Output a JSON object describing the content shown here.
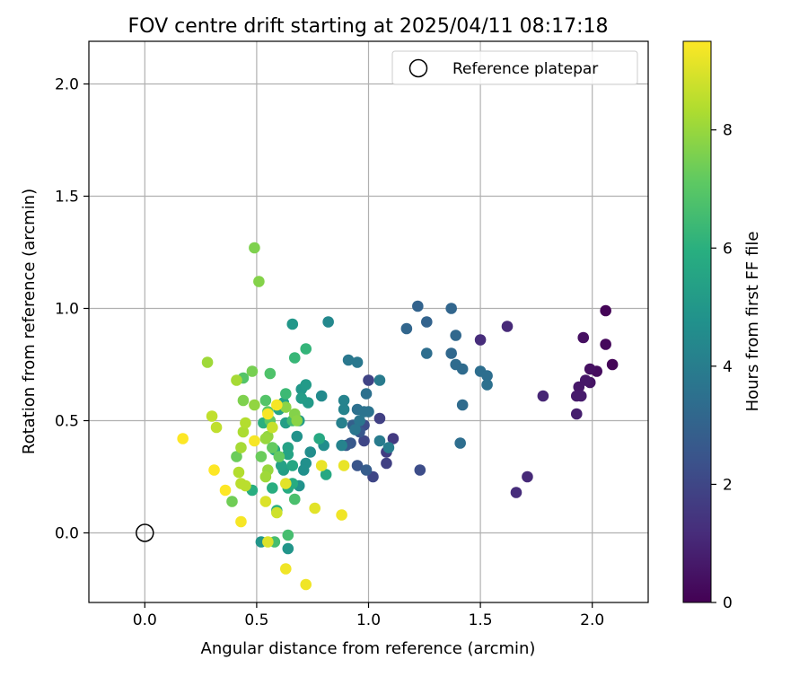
{
  "chart_data": {
    "type": "scatter",
    "title": "FOV centre drift starting at 2025/04/11 08:17:18",
    "xlabel": "Angular distance from reference (arcmin)",
    "ylabel": "Rotation from reference (arcmin)",
    "xlim": [
      -0.25,
      2.25
    ],
    "ylim": [
      -0.31,
      2.19
    ],
    "xticks": [
      0.0,
      0.5,
      1.0,
      1.5,
      2.0
    ],
    "yticks": [
      0.0,
      0.5,
      1.0,
      1.5,
      2.0
    ],
    "xtick_labels": [
      "0.0",
      "0.5",
      "1.0",
      "1.5",
      "2.0"
    ],
    "ytick_labels": [
      "0.0",
      "0.5",
      "1.0",
      "1.5",
      "2.0"
    ],
    "grid": true,
    "colormap": "viridis",
    "colorbar": {
      "label": "Hours from first FF file",
      "range": [
        0,
        9.5
      ],
      "ticks": [
        0,
        2,
        4,
        6,
        8
      ],
      "tick_labels": [
        "0",
        "2",
        "4",
        "6",
        "8"
      ]
    },
    "legend": {
      "placement": "top-right",
      "entries": [
        "Reference platepar"
      ]
    },
    "reference": {
      "x": 0.0,
      "y": 0.0
    },
    "points": [
      {
        "x": 2.06,
        "y": 0.99,
        "c": 0.1
      },
      {
        "x": 2.09,
        "y": 0.75,
        "c": 0.1
      },
      {
        "x": 2.06,
        "y": 0.84,
        "c": 0.2
      },
      {
        "x": 2.02,
        "y": 0.72,
        "c": 0.3
      },
      {
        "x": 1.99,
        "y": 0.73,
        "c": 0.4
      },
      {
        "x": 1.96,
        "y": 0.87,
        "c": 0.4
      },
      {
        "x": 1.99,
        "y": 0.67,
        "c": 0.5
      },
      {
        "x": 1.97,
        "y": 0.68,
        "c": 0.6
      },
      {
        "x": 1.94,
        "y": 0.65,
        "c": 0.6
      },
      {
        "x": 1.93,
        "y": 0.61,
        "c": 0.7
      },
      {
        "x": 1.95,
        "y": 0.61,
        "c": 0.7
      },
      {
        "x": 1.93,
        "y": 0.53,
        "c": 0.8
      },
      {
        "x": 1.78,
        "y": 0.61,
        "c": 1.0
      },
      {
        "x": 1.71,
        "y": 0.25,
        "c": 1.1
      },
      {
        "x": 1.66,
        "y": 0.18,
        "c": 1.2
      },
      {
        "x": 1.62,
        "y": 0.92,
        "c": 1.1
      },
      {
        "x": 1.5,
        "y": 0.86,
        "c": 1.2
      },
      {
        "x": 1.11,
        "y": 0.42,
        "c": 1.6
      },
      {
        "x": 1.08,
        "y": 0.36,
        "c": 1.7
      },
      {
        "x": 1.08,
        "y": 0.31,
        "c": 1.8
      },
      {
        "x": 1.05,
        "y": 0.51,
        "c": 1.8
      },
      {
        "x": 1.0,
        "y": 0.68,
        "c": 1.9
      },
      {
        "x": 1.02,
        "y": 0.25,
        "c": 2.0
      },
      {
        "x": 0.98,
        "y": 0.41,
        "c": 2.0
      },
      {
        "x": 0.98,
        "y": 0.48,
        "c": 2.2
      },
      {
        "x": 1.23,
        "y": 0.28,
        "c": 2.2
      },
      {
        "x": 0.95,
        "y": 0.3,
        "c": 2.5
      },
      {
        "x": 0.92,
        "y": 0.4,
        "c": 2.6
      },
      {
        "x": 0.96,
        "y": 0.45,
        "c": 2.6
      },
      {
        "x": 0.9,
        "y": 0.39,
        "c": 2.7
      },
      {
        "x": 0.99,
        "y": 0.28,
        "c": 2.8
      },
      {
        "x": 0.93,
        "y": 0.48,
        "c": 2.9
      },
      {
        "x": 1.22,
        "y": 1.01,
        "c": 3.0
      },
      {
        "x": 1.26,
        "y": 0.94,
        "c": 3.0
      },
      {
        "x": 1.17,
        "y": 0.91,
        "c": 3.1
      },
      {
        "x": 1.37,
        "y": 1.0,
        "c": 3.1
      },
      {
        "x": 1.39,
        "y": 0.88,
        "c": 3.2
      },
      {
        "x": 1.37,
        "y": 0.8,
        "c": 3.2
      },
      {
        "x": 1.39,
        "y": 0.75,
        "c": 3.3
      },
      {
        "x": 1.42,
        "y": 0.73,
        "c": 3.3
      },
      {
        "x": 1.5,
        "y": 0.72,
        "c": 3.4
      },
      {
        "x": 1.53,
        "y": 0.7,
        "c": 3.4
      },
      {
        "x": 1.53,
        "y": 0.66,
        "c": 3.5
      },
      {
        "x": 1.42,
        "y": 0.57,
        "c": 3.3
      },
      {
        "x": 1.41,
        "y": 0.4,
        "c": 3.4
      },
      {
        "x": 1.26,
        "y": 0.8,
        "c": 3.4
      },
      {
        "x": 0.99,
        "y": 0.62,
        "c": 3.5
      },
      {
        "x": 0.95,
        "y": 0.55,
        "c": 3.5
      },
      {
        "x": 0.98,
        "y": 0.54,
        "c": 3.6
      },
      {
        "x": 1.0,
        "y": 0.54,
        "c": 3.6
      },
      {
        "x": 0.96,
        "y": 0.5,
        "c": 3.7
      },
      {
        "x": 0.94,
        "y": 0.46,
        "c": 3.7
      },
      {
        "x": 0.91,
        "y": 0.77,
        "c": 3.8
      },
      {
        "x": 0.95,
        "y": 0.76,
        "c": 3.8
      },
      {
        "x": 1.05,
        "y": 0.68,
        "c": 3.9
      },
      {
        "x": 1.05,
        "y": 0.41,
        "c": 3.9
      },
      {
        "x": 1.09,
        "y": 0.38,
        "c": 4.0
      },
      {
        "x": 0.88,
        "y": 0.49,
        "c": 4.1
      },
      {
        "x": 0.89,
        "y": 0.55,
        "c": 4.2
      },
      {
        "x": 0.89,
        "y": 0.59,
        "c": 4.2
      },
      {
        "x": 0.88,
        "y": 0.39,
        "c": 4.2
      },
      {
        "x": 0.82,
        "y": 0.94,
        "c": 4.4
      },
      {
        "x": 0.79,
        "y": 0.61,
        "c": 4.5
      },
      {
        "x": 0.8,
        "y": 0.39,
        "c": 4.6
      },
      {
        "x": 0.74,
        "y": 0.36,
        "c": 4.6
      },
      {
        "x": 0.72,
        "y": 0.31,
        "c": 4.7
      },
      {
        "x": 0.71,
        "y": 0.28,
        "c": 4.7
      },
      {
        "x": 0.68,
        "y": 0.43,
        "c": 4.8
      },
      {
        "x": 0.69,
        "y": 0.21,
        "c": 4.8
      },
      {
        "x": 0.64,
        "y": -0.07,
        "c": 4.9
      },
      {
        "x": 0.52,
        "y": -0.04,
        "c": 4.9
      },
      {
        "x": 0.66,
        "y": 0.93,
        "c": 5.0
      },
      {
        "x": 0.7,
        "y": 0.64,
        "c": 5.0
      },
      {
        "x": 0.72,
        "y": 0.66,
        "c": 5.1
      },
      {
        "x": 0.73,
        "y": 0.58,
        "c": 5.1
      },
      {
        "x": 0.7,
        "y": 0.6,
        "c": 5.2
      },
      {
        "x": 0.69,
        "y": 0.5,
        "c": 5.2
      },
      {
        "x": 0.63,
        "y": 0.49,
        "c": 5.3
      },
      {
        "x": 0.62,
        "y": 0.28,
        "c": 5.3
      },
      {
        "x": 0.61,
        "y": 0.3,
        "c": 5.4
      },
      {
        "x": 0.64,
        "y": 0.38,
        "c": 5.4
      },
      {
        "x": 0.64,
        "y": 0.35,
        "c": 5.5
      },
      {
        "x": 0.6,
        "y": 0.55,
        "c": 5.5
      },
      {
        "x": 0.62,
        "y": 0.58,
        "c": 5.5
      },
      {
        "x": 0.58,
        "y": 0.37,
        "c": 5.6
      },
      {
        "x": 0.66,
        "y": 0.3,
        "c": 5.6
      },
      {
        "x": 0.81,
        "y": 0.26,
        "c": 5.7
      },
      {
        "x": 0.78,
        "y": 0.42,
        "c": 5.7
      },
      {
        "x": 0.64,
        "y": 0.2,
        "c": 5.8
      },
      {
        "x": 0.66,
        "y": 0.22,
        "c": 5.8
      },
      {
        "x": 0.57,
        "y": 0.2,
        "c": 5.9
      },
      {
        "x": 0.48,
        "y": 0.19,
        "c": 5.9
      },
      {
        "x": 0.59,
        "y": 0.1,
        "c": 6.0
      },
      {
        "x": 0.53,
        "y": 0.49,
        "c": 6.0
      },
      {
        "x": 0.72,
        "y": 0.82,
        "c": 6.2
      },
      {
        "x": 0.67,
        "y": 0.78,
        "c": 6.3
      },
      {
        "x": 0.63,
        "y": 0.62,
        "c": 6.4
      },
      {
        "x": 0.66,
        "y": 0.5,
        "c": 6.5
      },
      {
        "x": 0.64,
        "y": -0.01,
        "c": 6.6
      },
      {
        "x": 0.58,
        "y": -0.04,
        "c": 6.6
      },
      {
        "x": 0.67,
        "y": 0.15,
        "c": 6.7
      },
      {
        "x": 0.56,
        "y": 0.71,
        "c": 6.8
      },
      {
        "x": 0.54,
        "y": 0.59,
        "c": 6.9
      },
      {
        "x": 0.44,
        "y": 0.69,
        "c": 6.9
      },
      {
        "x": 0.55,
        "y": 0.54,
        "c": 7.0
      },
      {
        "x": 0.56,
        "y": 0.5,
        "c": 7.1
      },
      {
        "x": 0.6,
        "y": 0.34,
        "c": 7.2
      },
      {
        "x": 0.57,
        "y": 0.38,
        "c": 7.2
      },
      {
        "x": 0.52,
        "y": 0.34,
        "c": 7.3
      },
      {
        "x": 0.41,
        "y": 0.34,
        "c": 7.3
      },
      {
        "x": 0.39,
        "y": 0.14,
        "c": 7.4
      },
      {
        "x": 0.48,
        "y": 0.72,
        "c": 7.5
      },
      {
        "x": 0.44,
        "y": 0.59,
        "c": 7.6
      },
      {
        "x": 0.49,
        "y": 1.27,
        "c": 7.6
      },
      {
        "x": 0.51,
        "y": 1.12,
        "c": 7.7
      },
      {
        "x": 0.67,
        "y": 0.53,
        "c": 7.7
      },
      {
        "x": 0.68,
        "y": 0.5,
        "c": 7.8
      },
      {
        "x": 0.63,
        "y": 0.56,
        "c": 7.8
      },
      {
        "x": 0.49,
        "y": 0.57,
        "c": 7.9
      },
      {
        "x": 0.55,
        "y": 0.43,
        "c": 7.9
      },
      {
        "x": 0.54,
        "y": 0.42,
        "c": 8.0
      },
      {
        "x": 0.55,
        "y": 0.28,
        "c": 8.0
      },
      {
        "x": 0.54,
        "y": 0.25,
        "c": 8.1
      },
      {
        "x": 0.28,
        "y": 0.76,
        "c": 8.1
      },
      {
        "x": 0.41,
        "y": 0.68,
        "c": 8.2
      },
      {
        "x": 0.43,
        "y": 0.38,
        "c": 8.2
      },
      {
        "x": 0.44,
        "y": 0.45,
        "c": 8.3
      },
      {
        "x": 0.45,
        "y": 0.49,
        "c": 8.4
      },
      {
        "x": 0.42,
        "y": 0.27,
        "c": 8.4
      },
      {
        "x": 0.43,
        "y": 0.22,
        "c": 8.5
      },
      {
        "x": 0.45,
        "y": 0.21,
        "c": 8.5
      },
      {
        "x": 0.3,
        "y": 0.52,
        "c": 8.6
      },
      {
        "x": 0.32,
        "y": 0.47,
        "c": 8.6
      },
      {
        "x": 0.57,
        "y": 0.47,
        "c": 8.7
      },
      {
        "x": 0.59,
        "y": 0.09,
        "c": 8.8
      },
      {
        "x": 0.55,
        "y": -0.04,
        "c": 9.0
      },
      {
        "x": 0.54,
        "y": 0.14,
        "c": 9.0
      },
      {
        "x": 0.63,
        "y": 0.22,
        "c": 9.1
      },
      {
        "x": 0.76,
        "y": 0.11,
        "c": 9.1
      },
      {
        "x": 0.89,
        "y": 0.3,
        "c": 9.2
      },
      {
        "x": 0.79,
        "y": 0.3,
        "c": 9.2
      },
      {
        "x": 0.88,
        "y": 0.08,
        "c": 9.3
      },
      {
        "x": 0.72,
        "y": -0.23,
        "c": 9.3
      },
      {
        "x": 0.63,
        "y": -0.16,
        "c": 9.3
      },
      {
        "x": 0.49,
        "y": 0.41,
        "c": 9.4
      },
      {
        "x": 0.55,
        "y": 0.53,
        "c": 9.4
      },
      {
        "x": 0.59,
        "y": 0.57,
        "c": 9.4
      },
      {
        "x": 0.43,
        "y": 0.05,
        "c": 9.4
      },
      {
        "x": 0.36,
        "y": 0.19,
        "c": 9.5
      },
      {
        "x": 0.31,
        "y": 0.28,
        "c": 9.5
      },
      {
        "x": 0.17,
        "y": 0.42,
        "c": 9.5
      }
    ]
  }
}
